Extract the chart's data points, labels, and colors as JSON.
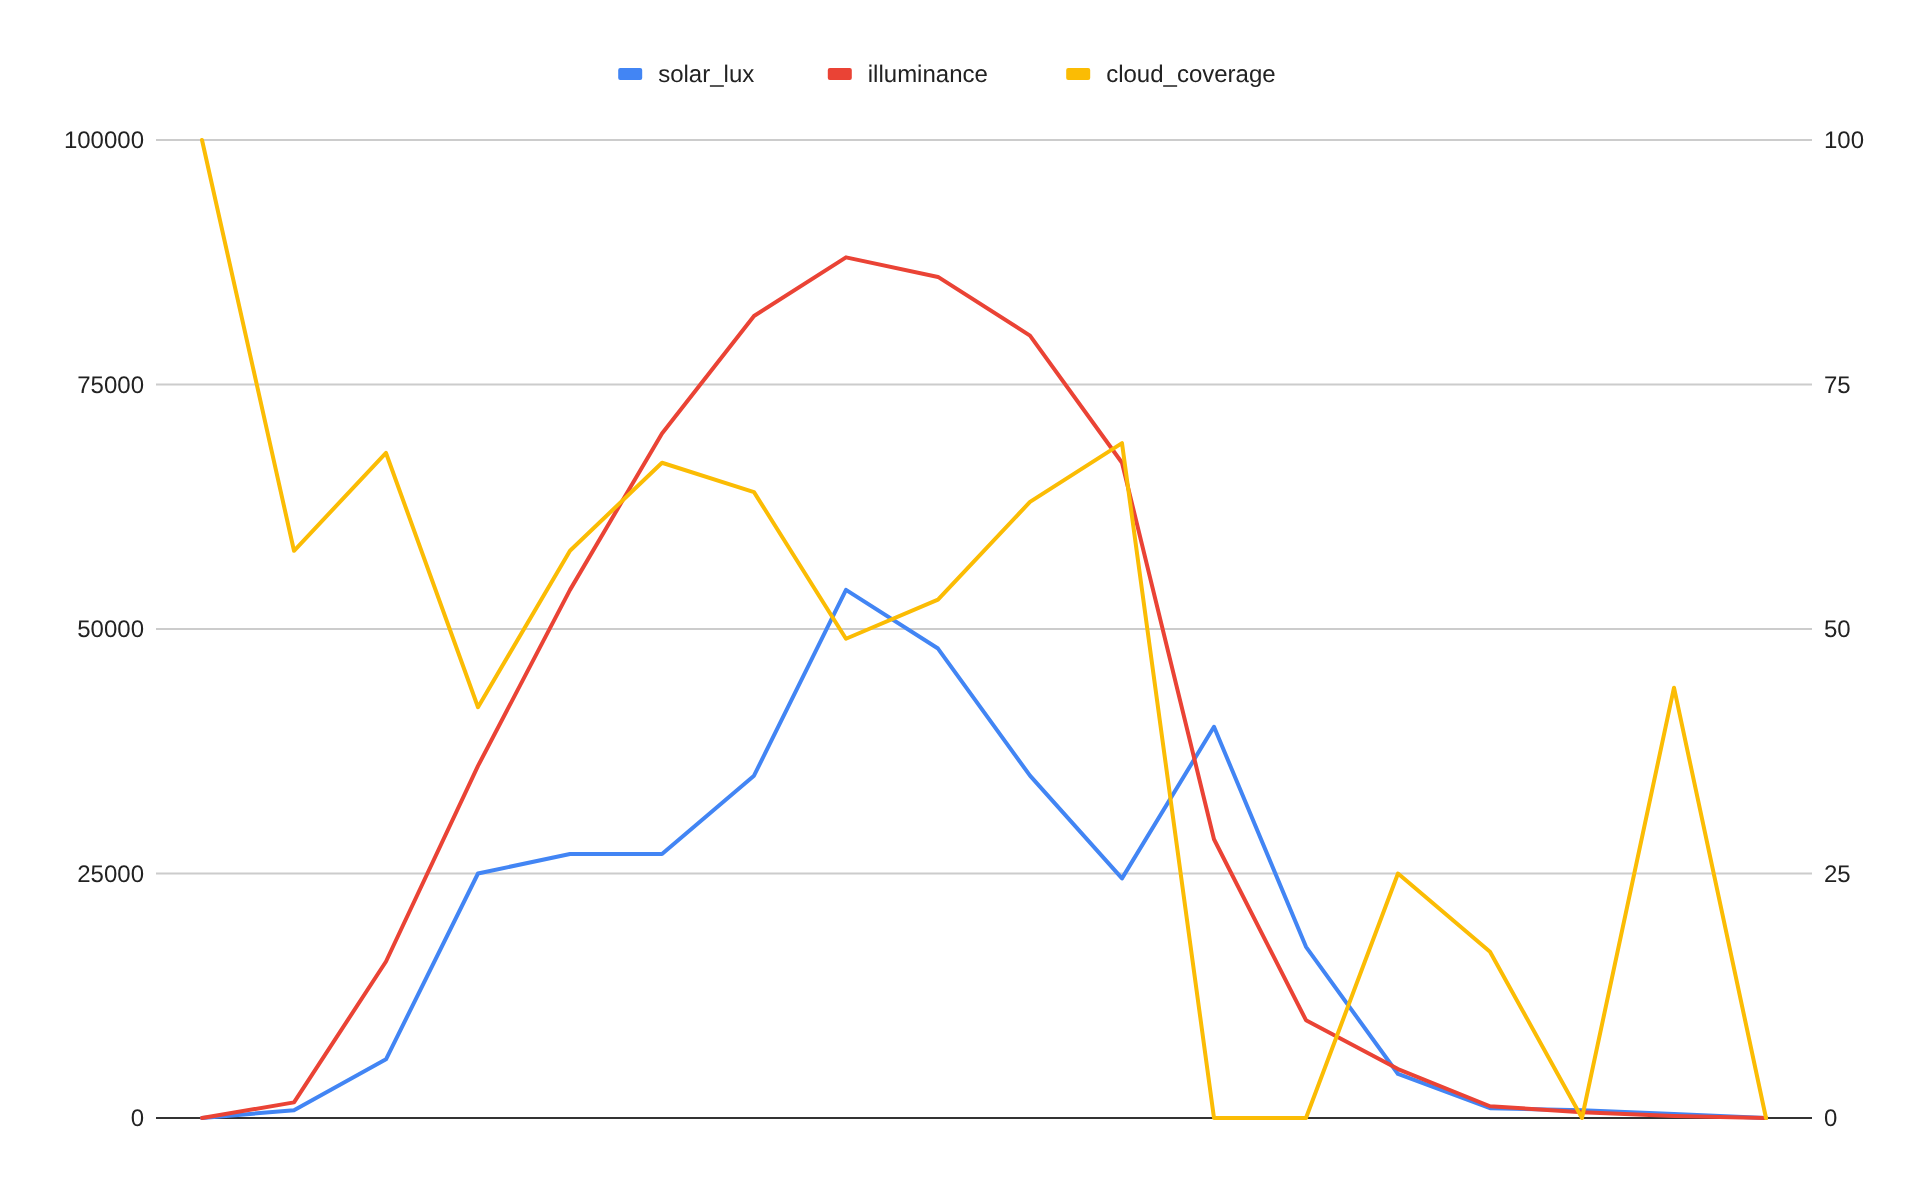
{
  "chart_data": {
    "type": "line",
    "categories": [
      null,
      null,
      null,
      null,
      null,
      null,
      null,
      null,
      null,
      null,
      null,
      null,
      null,
      null,
      null,
      null,
      null,
      null
    ],
    "series": [
      {
        "name": "solar_lux",
        "color": "#4285f4",
        "values": [
          0,
          800,
          6000,
          25000,
          27000,
          27000,
          35000,
          54000,
          48000,
          35000,
          24500,
          40000,
          17500,
          4500,
          1000,
          800,
          400,
          0
        ]
      },
      {
        "name": "illuminance",
        "color": "#ea4335",
        "values": [
          0,
          1600,
          16000,
          36000,
          54000,
          70000,
          82000,
          88000,
          86000,
          80000,
          67000,
          28500,
          10000,
          5000,
          1200,
          600,
          200,
          0
        ]
      },
      {
        "name": "cloud_coverage",
        "color": "#fbbc04",
        "axis": "y2",
        "values": [
          100,
          58,
          68,
          42,
          58,
          67,
          64,
          49,
          53,
          63,
          69,
          0,
          0,
          25,
          17,
          0,
          44,
          0
        ]
      }
    ],
    "ylim": [
      0,
      100000
    ],
    "yticks": [
      0,
      25000,
      50000,
      75000,
      100000
    ],
    "y2lim": [
      0,
      100
    ],
    "y2ticks": [
      0,
      25,
      50,
      75,
      100
    ],
    "grid": "y",
    "legend": "top"
  }
}
